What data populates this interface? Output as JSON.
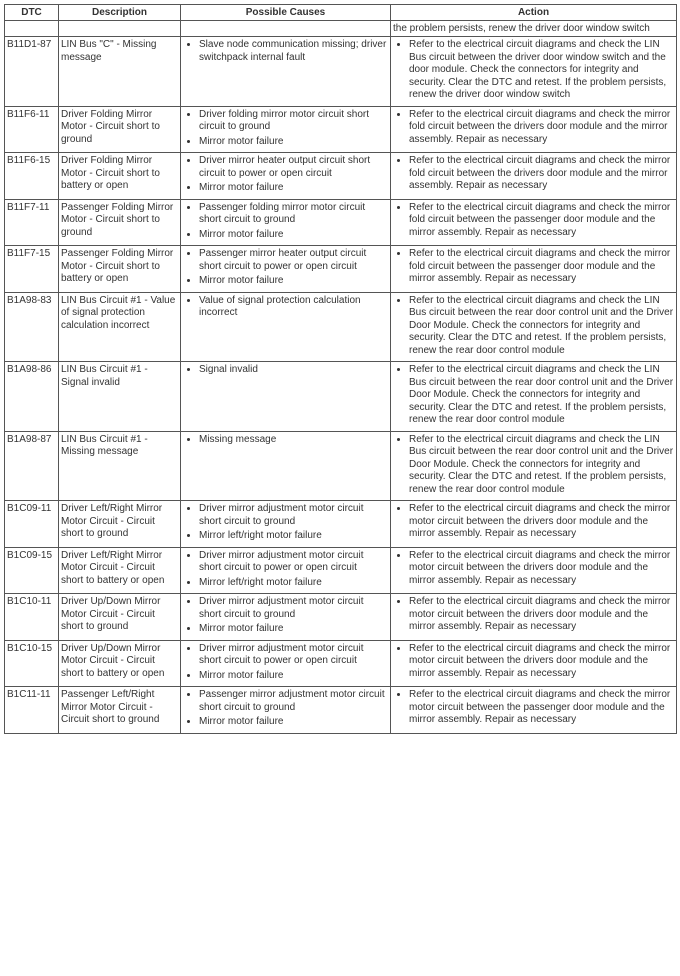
{
  "columns": [
    "DTC",
    "Description",
    "Possible Causes",
    "Action"
  ],
  "rows": [
    {
      "dtc": "",
      "desc": "",
      "causes": [],
      "actions": [
        "the problem persists, renew the driver door window switch"
      ],
      "action_plain": true
    },
    {
      "dtc": "B11D1-87",
      "desc": "LIN Bus \"C\" - Missing message",
      "causes": [
        "Slave node communication missing; driver switchpack internal fault"
      ],
      "actions": [
        "Refer to the electrical circuit diagrams and check the LIN Bus circuit between the driver door window switch and the door module. Check the connectors for integrity and security. Clear the DTC and retest. If the problem persists, renew the driver door window switch"
      ]
    },
    {
      "dtc": "B11F6-11",
      "desc": "Driver Folding Mirror Motor - Circuit short to ground",
      "causes": [
        "Driver folding mirror motor circuit short circuit to ground",
        "Mirror motor failure"
      ],
      "actions": [
        "Refer to the electrical circuit diagrams and check the mirror fold circuit between the drivers door module and the mirror assembly. Repair as necessary"
      ]
    },
    {
      "dtc": "B11F6-15",
      "desc": "Driver Folding Mirror Motor - Circuit short to battery or open",
      "causes": [
        "Driver mirror heater output circuit short circuit to power or open circuit",
        "Mirror motor failure"
      ],
      "actions": [
        "Refer to the electrical circuit diagrams and check the mirror fold circuit between the drivers door module and the mirror assembly. Repair as necessary"
      ]
    },
    {
      "dtc": "B11F7-11",
      "desc": "Passenger Folding Mirror Motor - Circuit short to ground",
      "causes": [
        "Passenger folding mirror motor circuit short circuit to ground",
        "Mirror motor failure"
      ],
      "actions": [
        "Refer to the electrical circuit diagrams and check the mirror fold circuit between the passenger door module and the mirror assembly. Repair as necessary"
      ]
    },
    {
      "dtc": "B11F7-15",
      "desc": "Passenger Folding Mirror Motor - Circuit short to battery or open",
      "causes": [
        "Passenger mirror heater output circuit short circuit to power or open circuit",
        "Mirror motor failure"
      ],
      "actions": [
        "Refer to the electrical circuit diagrams and check the mirror fold circuit between the passenger door module and the mirror assembly. Repair as necessary"
      ]
    },
    {
      "dtc": "B1A98-83",
      "desc": "LIN Bus Circuit #1 - Value of signal protection calculation incorrect",
      "causes": [
        "Value of signal protection calculation incorrect"
      ],
      "actions": [
        "Refer to the electrical circuit diagrams and check the LIN Bus circuit between the rear door control unit and the Driver Door Module. Check the connectors for integrity and security. Clear the DTC and retest. If the problem persists, renew the rear door control module"
      ]
    },
    {
      "dtc": "B1A98-86",
      "desc": "LIN Bus Circuit #1 - Signal invalid",
      "causes": [
        "Signal invalid"
      ],
      "actions": [
        "Refer to the electrical circuit diagrams and check the LIN Bus circuit between the rear door control unit and the Driver Door Module. Check the connectors for integrity and security. Clear the DTC and retest. If the problem persists, renew the rear door control module"
      ]
    },
    {
      "dtc": "B1A98-87",
      "desc": "LIN Bus Circuit #1 - Missing message",
      "causes": [
        "Missing message"
      ],
      "actions": [
        "Refer to the electrical circuit diagrams and check the LIN Bus circuit between the rear door control unit and the Driver Door Module. Check the connectors for integrity and security. Clear the DTC and retest. If the problem persists, renew the rear door control module"
      ]
    },
    {
      "dtc": "B1C09-11",
      "desc": "Driver Left/Right Mirror Motor Circuit - Circuit short to ground",
      "causes": [
        "Driver mirror adjustment motor circuit short circuit to ground",
        "Mirror left/right motor failure"
      ],
      "actions": [
        "Refer to the electrical circuit diagrams and check the mirror motor circuit between the drivers door module and the mirror assembly. Repair as necessary"
      ]
    },
    {
      "dtc": "B1C09-15",
      "desc": "Driver Left/Right Mirror Motor Circuit - Circuit short to battery or open",
      "causes": [
        "Driver mirror adjustment motor circuit short circuit to power or open circuit",
        "Mirror left/right motor failure"
      ],
      "actions": [
        "Refer to the electrical circuit diagrams and check the mirror motor circuit between the drivers door module and the mirror assembly. Repair as necessary"
      ]
    },
    {
      "dtc": "B1C10-11",
      "desc": "Driver Up/Down Mirror Motor Circuit - Circuit short to ground",
      "causes": [
        "Driver mirror adjustment motor circuit short circuit to ground",
        "Mirror motor failure"
      ],
      "actions": [
        "Refer to the electrical circuit diagrams and check the mirror motor circuit between the drivers door module and the mirror assembly. Repair as necessary"
      ]
    },
    {
      "dtc": "B1C10-15",
      "desc": "Driver Up/Down Mirror Motor Circuit - Circuit short to battery or open",
      "causes": [
        "Driver mirror adjustment motor circuit short circuit to power or open circuit",
        "Mirror motor failure"
      ],
      "actions": [
        "Refer to the electrical circuit diagrams and check the mirror motor circuit between the drivers door module and the mirror assembly. Repair as necessary"
      ]
    },
    {
      "dtc": "B1C11-11",
      "desc": "Passenger Left/Right Mirror Motor Circuit - Circuit short to ground",
      "causes": [
        "Passenger mirror adjustment motor circuit short circuit to ground",
        "Mirror motor failure"
      ],
      "actions": [
        "Refer to the electrical circuit diagrams and check the mirror motor circuit between the passenger door module and the mirror assembly. Repair as necessary"
      ]
    }
  ]
}
